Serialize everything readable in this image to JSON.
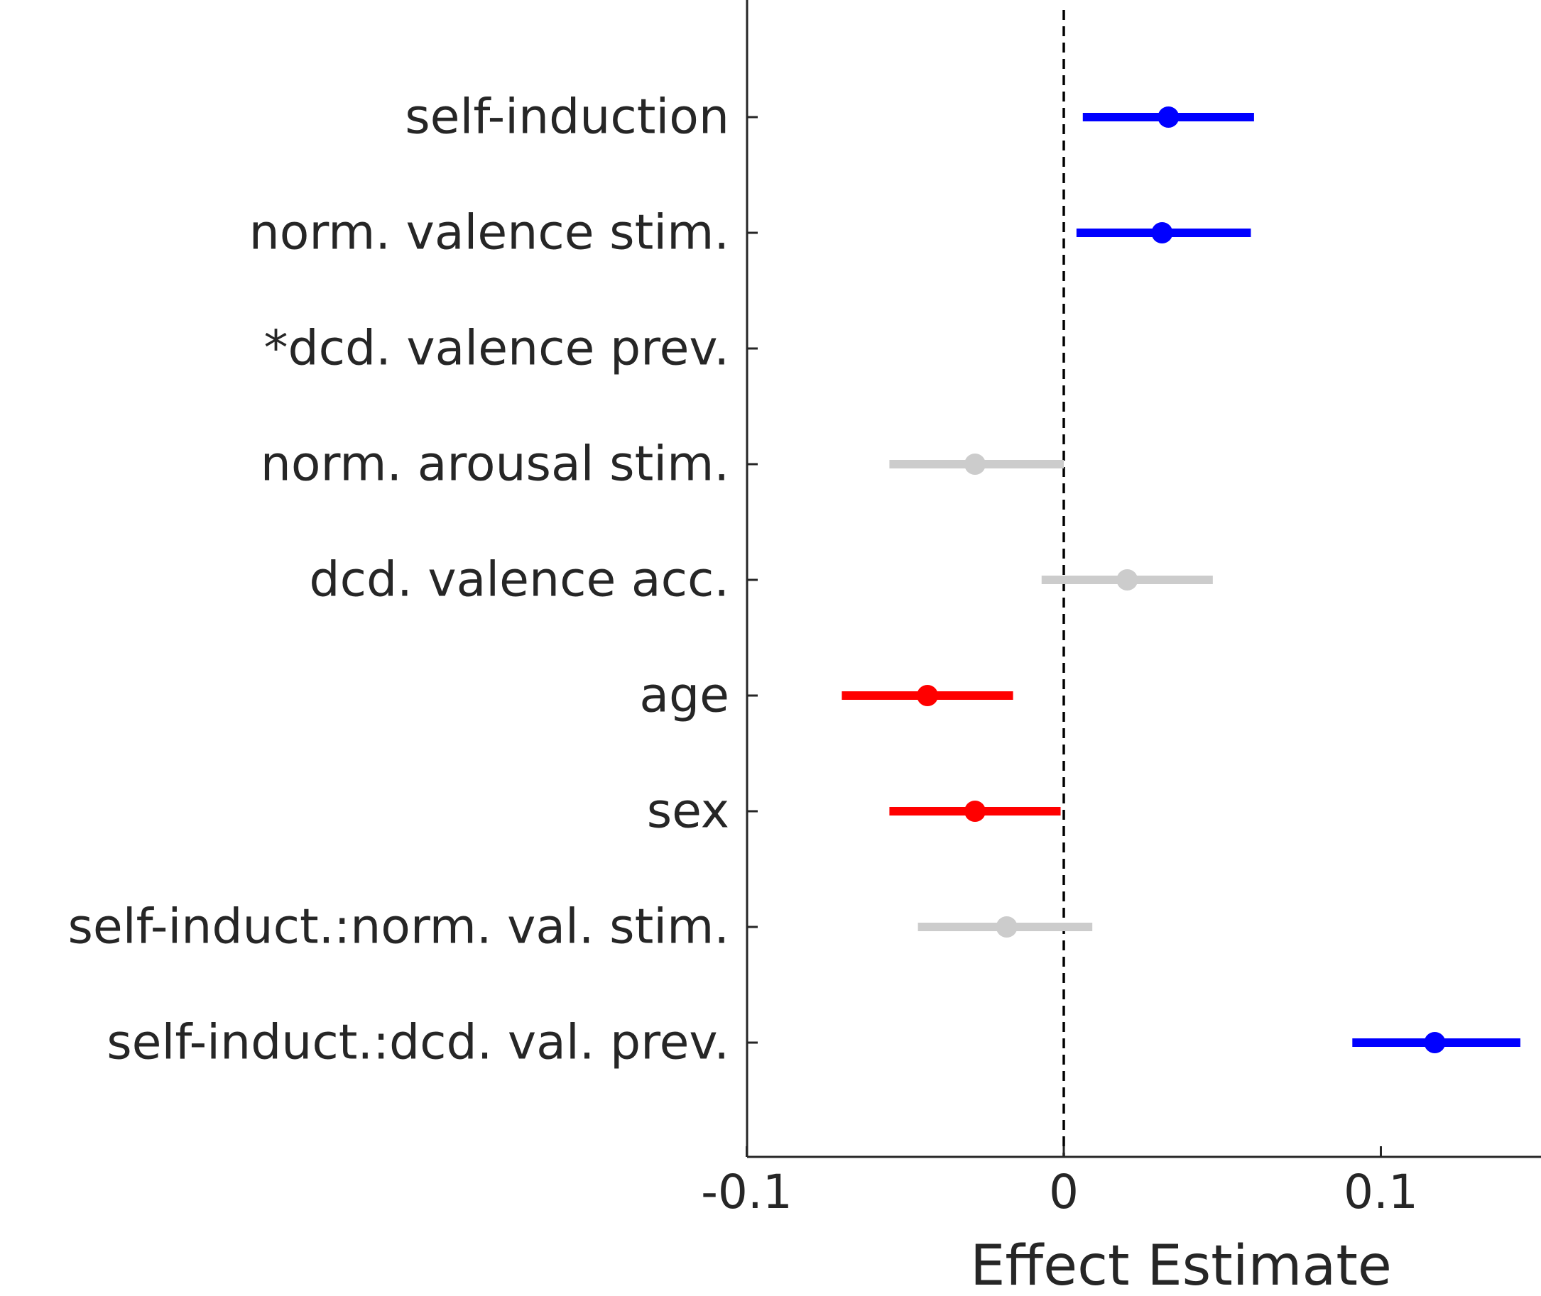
{
  "chart_data": {
    "type": "forest",
    "xlabel": "Effect Estimate",
    "xlim": [
      -0.1,
      0.15
    ],
    "xticks": [
      -0.1,
      0,
      0.1
    ],
    "xtick_labels": [
      "-0.1",
      "0",
      "0.1"
    ],
    "reference_line": 0,
    "colors": {
      "positive": "#0000ff",
      "negative": "#ff0000",
      "nonsignificant": "#cccccc"
    },
    "rows": [
      {
        "label": "self-induction",
        "estimate": 0.033,
        "lower": 0.006,
        "upper": 0.06,
        "significance": "positive"
      },
      {
        "label": "norm. valence stim.",
        "estimate": 0.031,
        "lower": 0.004,
        "upper": 0.059,
        "significance": "positive"
      },
      {
        "label": "*dcd. valence prev.",
        "estimate": null,
        "lower": null,
        "upper": null,
        "significance": "none"
      },
      {
        "label": "norm. arousal stim.",
        "estimate": -0.028,
        "lower": -0.055,
        "upper": 0.0,
        "significance": "nonsignificant"
      },
      {
        "label": "dcd. valence acc.",
        "estimate": 0.02,
        "lower": -0.007,
        "upper": 0.047,
        "significance": "nonsignificant"
      },
      {
        "label": "age",
        "estimate": -0.043,
        "lower": -0.07,
        "upper": -0.016,
        "significance": "negative"
      },
      {
        "label": "sex",
        "estimate": -0.028,
        "lower": -0.055,
        "upper": -0.001,
        "significance": "negative"
      },
      {
        "label": "self-induct.:norm. val. stim.",
        "estimate": -0.018,
        "lower": -0.046,
        "upper": 0.009,
        "significance": "nonsignificant"
      },
      {
        "label": "self-induct.:dcd. val. prev.",
        "estimate": 0.117,
        "lower": 0.091,
        "upper": 0.144,
        "significance": "positive"
      }
    ]
  }
}
